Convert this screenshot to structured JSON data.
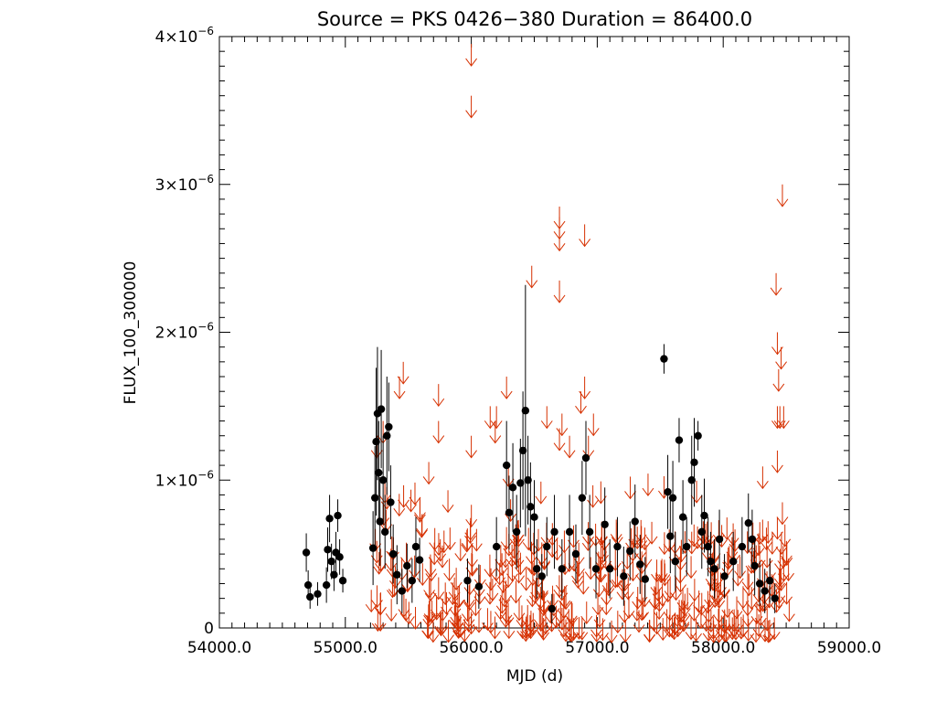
{
  "chart_data": {
    "type": "scatter",
    "title": "Source = PKS 0426−380 Duration = 86400.0",
    "xlabel": "MJD (d)",
    "ylabel": "FLUX_100_300000",
    "xlim": [
      54000,
      59000
    ],
    "ylim": [
      0,
      4e-06
    ],
    "x_ticks": [
      {
        "value": 54000,
        "label": "54000.0"
      },
      {
        "value": 55000,
        "label": "55000.0"
      },
      {
        "value": 56000,
        "label": "56000.0"
      },
      {
        "value": 57000,
        "label": "57000.0"
      },
      {
        "value": 58000,
        "label": "58000.0"
      },
      {
        "value": 59000,
        "label": "59000.0"
      }
    ],
    "y_ticks": [
      {
        "value": 0,
        "mantissa": "0",
        "exponent": ""
      },
      {
        "value": 1e-06,
        "mantissa": "1×10",
        "exponent": "−6"
      },
      {
        "value": 2e-06,
        "mantissa": "2×10",
        "exponent": "−6"
      },
      {
        "value": 3e-06,
        "mantissa": "3×10",
        "exponent": "−6"
      },
      {
        "value": 4e-06,
        "mantissa": "4×10",
        "exponent": "−6"
      }
    ],
    "colors": {
      "detections": "#000000",
      "upper_limits": "#d63000"
    },
    "series": [
      {
        "kind": "detections",
        "points": [
          {
            "x": 54690,
            "y": 5.1e-07,
            "err": 1.3e-07
          },
          {
            "x": 54705,
            "y": 2.9e-07,
            "err": 1e-07
          },
          {
            "x": 54720,
            "y": 2.1e-07,
            "err": 8e-08
          },
          {
            "x": 54780,
            "y": 2.3e-07,
            "err": 8e-08
          },
          {
            "x": 54850,
            "y": 2.9e-07,
            "err": 1.2e-07
          },
          {
            "x": 54860,
            "y": 5.3e-07,
            "err": 1.5e-07
          },
          {
            "x": 54875,
            "y": 7.4e-07,
            "err": 1.6e-07
          },
          {
            "x": 54890,
            "y": 4.5e-07,
            "err": 1.2e-07
          },
          {
            "x": 54910,
            "y": 3.6e-07,
            "err": 1.1e-07
          },
          {
            "x": 54925,
            "y": 5.1e-07,
            "err": 1.4e-07
          },
          {
            "x": 54940,
            "y": 7.6e-07,
            "err": 1.1e-07
          },
          {
            "x": 54955,
            "y": 4.8e-07,
            "err": 1.2e-07
          },
          {
            "x": 54980,
            "y": 3.2e-07,
            "err": 8e-08
          },
          {
            "x": 55220,
            "y": 5.4e-07,
            "err": 2.5e-07
          },
          {
            "x": 55235,
            "y": 8.8e-07,
            "err": 3.5e-07
          },
          {
            "x": 55245,
            "y": 1.26e-06,
            "err": 5e-07
          },
          {
            "x": 55255,
            "y": 1.45e-06,
            "err": 4.5e-07
          },
          {
            "x": 55265,
            "y": 1.05e-06,
            "err": 3.5e-07
          },
          {
            "x": 55275,
            "y": 7.2e-07,
            "err": 3e-07
          },
          {
            "x": 55285,
            "y": 1.48e-06,
            "err": 4e-07
          },
          {
            "x": 55300,
            "y": 1e-06,
            "err": 3e-07
          },
          {
            "x": 55315,
            "y": 6.5e-07,
            "err": 2.5e-07
          },
          {
            "x": 55330,
            "y": 1.3e-06,
            "err": 4e-07
          },
          {
            "x": 55345,
            "y": 1.36e-06,
            "err": 3e-07
          },
          {
            "x": 55360,
            "y": 8.5e-07,
            "err": 2.5e-07
          },
          {
            "x": 55380,
            "y": 5e-07,
            "err": 2e-07
          },
          {
            "x": 55410,
            "y": 3.6e-07,
            "err": 2e-07
          },
          {
            "x": 55450,
            "y": 2.5e-07,
            "err": 1.5e-07
          },
          {
            "x": 55490,
            "y": 4.2e-07,
            "err": 1.5e-07
          },
          {
            "x": 55530,
            "y": 3.2e-07,
            "err": 1.5e-07
          },
          {
            "x": 55560,
            "y": 5.5e-07,
            "err": 2e-07
          },
          {
            "x": 55590,
            "y": 4.6e-07,
            "err": 1.5e-07
          },
          {
            "x": 55970,
            "y": 3.2e-07,
            "err": 1.5e-07
          },
          {
            "x": 56060,
            "y": 2.8e-07,
            "err": 1.5e-07
          },
          {
            "x": 56200,
            "y": 5.5e-07,
            "err": 2e-07
          },
          {
            "x": 56280,
            "y": 1.1e-06,
            "err": 3e-07
          },
          {
            "x": 56300,
            "y": 7.8e-07,
            "err": 2.5e-07
          },
          {
            "x": 56330,
            "y": 9.5e-07,
            "err": 3e-07
          },
          {
            "x": 56360,
            "y": 6.5e-07,
            "err": 2.5e-07
          },
          {
            "x": 56390,
            "y": 9.8e-07,
            "err": 3e-07
          },
          {
            "x": 56410,
            "y": 1.2e-06,
            "err": 4e-07
          },
          {
            "x": 56430,
            "y": 1.47e-06,
            "err": 8.5e-07
          },
          {
            "x": 56450,
            "y": 1e-06,
            "err": 3e-07
          },
          {
            "x": 56470,
            "y": 8.2e-07,
            "err": 3e-07
          },
          {
            "x": 56500,
            "y": 7.5e-07,
            "err": 2.5e-07
          },
          {
            "x": 56520,
            "y": 4e-07,
            "err": 2e-07
          },
          {
            "x": 56560,
            "y": 3.5e-07,
            "err": 1.5e-07
          },
          {
            "x": 56600,
            "y": 5.5e-07,
            "err": 2e-07
          },
          {
            "x": 56640,
            "y": 1.3e-07,
            "err": 1e-07
          },
          {
            "x": 56660,
            "y": 6.5e-07,
            "err": 2.5e-07
          },
          {
            "x": 56720,
            "y": 4e-07,
            "err": 2e-07
          },
          {
            "x": 56780,
            "y": 6.5e-07,
            "err": 2.5e-07
          },
          {
            "x": 56830,
            "y": 5e-07,
            "err": 2e-07
          },
          {
            "x": 56880,
            "y": 8.8e-07,
            "err": 2.5e-07
          },
          {
            "x": 56910,
            "y": 1.15e-06,
            "err": 2.5e-07
          },
          {
            "x": 56940,
            "y": 6.5e-07,
            "err": 2.5e-07
          },
          {
            "x": 56990,
            "y": 4e-07,
            "err": 2e-07
          },
          {
            "x": 57060,
            "y": 7e-07,
            "err": 2.5e-07
          },
          {
            "x": 57100,
            "y": 4e-07,
            "err": 2e-07
          },
          {
            "x": 57160,
            "y": 5.5e-07,
            "err": 2e-07
          },
          {
            "x": 57210,
            "y": 3.5e-07,
            "err": 2e-07
          },
          {
            "x": 57260,
            "y": 5.2e-07,
            "err": 2e-07
          },
          {
            "x": 57300,
            "y": 7.2e-07,
            "err": 2.5e-07
          },
          {
            "x": 57340,
            "y": 4.3e-07,
            "err": 2e-07
          },
          {
            "x": 57380,
            "y": 3.3e-07,
            "err": 1.5e-07
          },
          {
            "x": 57530,
            "y": 1.82e-06,
            "err": 1e-07
          },
          {
            "x": 57560,
            "y": 9.2e-07,
            "err": 2.5e-07
          },
          {
            "x": 57580,
            "y": 6.2e-07,
            "err": 2.5e-07
          },
          {
            "x": 57600,
            "y": 8.8e-07,
            "err": 2.5e-07
          },
          {
            "x": 57620,
            "y": 4.5e-07,
            "err": 2e-07
          },
          {
            "x": 57650,
            "y": 1.27e-06,
            "err": 1.5e-07
          },
          {
            "x": 57680,
            "y": 7.5e-07,
            "err": 2.5e-07
          },
          {
            "x": 57710,
            "y": 5.5e-07,
            "err": 2e-07
          },
          {
            "x": 57750,
            "y": 1e-06,
            "err": 3e-07
          },
          {
            "x": 57770,
            "y": 1.12e-06,
            "err": 3e-07
          },
          {
            "x": 57800,
            "y": 1.3e-06,
            "err": 1e-07
          },
          {
            "x": 57830,
            "y": 6.5e-07,
            "err": 2.5e-07
          },
          {
            "x": 57850,
            "y": 7.6e-07,
            "err": 2.5e-07
          },
          {
            "x": 57880,
            "y": 5.5e-07,
            "err": 2e-07
          },
          {
            "x": 57900,
            "y": 4.5e-07,
            "err": 2e-07
          },
          {
            "x": 57930,
            "y": 4e-07,
            "err": 2e-07
          },
          {
            "x": 57970,
            "y": 6e-07,
            "err": 2e-07
          },
          {
            "x": 58010,
            "y": 3.5e-07,
            "err": 1.5e-07
          },
          {
            "x": 58080,
            "y": 4.5e-07,
            "err": 2e-07
          },
          {
            "x": 58150,
            "y": 5.5e-07,
            "err": 2e-07
          },
          {
            "x": 58200,
            "y": 7.1e-07,
            "err": 2e-07
          },
          {
            "x": 58230,
            "y": 6e-07,
            "err": 2e-07
          },
          {
            "x": 58250,
            "y": 4.2e-07,
            "err": 2e-07
          },
          {
            "x": 58290,
            "y": 3e-07,
            "err": 1.5e-07
          },
          {
            "x": 58330,
            "y": 2.5e-07,
            "err": 1.5e-07
          },
          {
            "x": 58370,
            "y": 3.2e-07,
            "err": 1.5e-07
          },
          {
            "x": 58410,
            "y": 2e-07,
            "err": 1e-07
          }
        ]
      },
      {
        "kind": "upper_limits",
        "points": [
          {
            "x": 56000,
            "y": 3.95e-06
          },
          {
            "x": 56000,
            "y": 3.6e-06
          },
          {
            "x": 56700,
            "y": 2.85e-06
          },
          {
            "x": 56700,
            "y": 2.78e-06
          },
          {
            "x": 56700,
            "y": 2.7e-06
          },
          {
            "x": 56900,
            "y": 2.73e-06
          },
          {
            "x": 56700,
            "y": 2.35e-06
          },
          {
            "x": 56480,
            "y": 2.45e-06
          },
          {
            "x": 58470,
            "y": 3e-06
          },
          {
            "x": 58420,
            "y": 2.4e-06
          },
          {
            "x": 58430,
            "y": 2e-06
          },
          {
            "x": 58460,
            "y": 1.9e-06
          },
          {
            "x": 58440,
            "y": 1.75e-06
          },
          {
            "x": 58430,
            "y": 1.5e-06
          },
          {
            "x": 58480,
            "y": 1.5e-06
          },
          {
            "x": 58450,
            "y": 1.5e-06
          },
          {
            "x": 58430,
            "y": 1.2e-06
          },
          {
            "x": 55460,
            "y": 1.8e-06
          },
          {
            "x": 55430,
            "y": 1.7e-06
          },
          {
            "x": 55740,
            "y": 1.65e-06
          },
          {
            "x": 56280,
            "y": 1.7e-06
          },
          {
            "x": 56900,
            "y": 1.7e-06
          },
          {
            "x": 56870,
            "y": 1.6e-06
          },
          {
            "x": 56600,
            "y": 1.5e-06
          },
          {
            "x": 56720,
            "y": 1.45e-06
          },
          {
            "x": 56970,
            "y": 1.45e-06
          },
          {
            "x": 56150,
            "y": 1.5e-06
          },
          {
            "x": 56200,
            "y": 1.5e-06
          },
          {
            "x": 55740,
            "y": 1.4e-06
          },
          {
            "x": 55300,
            "y": 1.4e-06
          },
          {
            "x": 55250,
            "y": 1.3e-06
          },
          {
            "x": 56000,
            "y": 1.3e-06
          },
          {
            "x": 56190,
            "y": 1.4e-06
          },
          {
            "x": 56700,
            "y": 1.35e-06
          },
          {
            "x": 56780,
            "y": 1.3e-06
          },
          {
            "x": 56930,
            "y": 1.3e-06
          },
          {
            "x": 58470,
            "y": 8.5e-07
          },
          {
            "x": 58430,
            "y": 7.5e-07
          },
          {
            "x": 58490,
            "y": 7e-07
          }
        ],
        "band": {
          "x_start": 55200,
          "x_end": 58530,
          "gaps": [
            [
              55620,
              55650
            ]
          ],
          "dense_from": 55650,
          "dense_count": 420,
          "y_max_near": 1.15e-06,
          "y_max_typical": 7.5e-07,
          "y_min": 5e-08
        }
      }
    ]
  }
}
